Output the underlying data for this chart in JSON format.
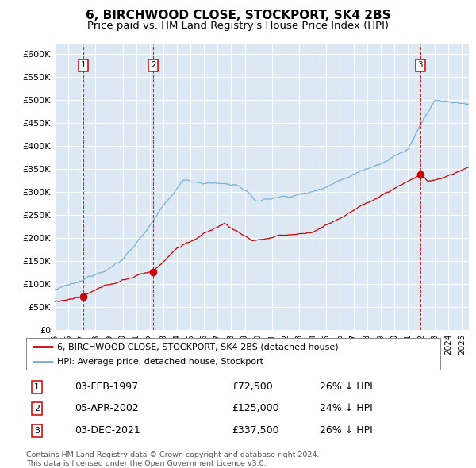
{
  "title": "6, BIRCHWOOD CLOSE, STOCKPORT, SK4 2BS",
  "subtitle": "Price paid vs. HM Land Registry's House Price Index (HPI)",
  "ylim": [
    0,
    620000
  ],
  "yticks": [
    0,
    50000,
    100000,
    150000,
    200000,
    250000,
    300000,
    350000,
    400000,
    450000,
    500000,
    550000,
    600000
  ],
  "xlim_start": 1995.0,
  "xlim_end": 2025.5,
  "background_color": "#ffffff",
  "plot_bg_color": "#dce9f5",
  "grid_color": "#ffffff",
  "sale_points": [
    {
      "year": 1997.085,
      "price": 72500,
      "label": "1"
    },
    {
      "year": 2002.26,
      "price": 125000,
      "label": "2"
    },
    {
      "year": 2021.92,
      "price": 337500,
      "label": "3"
    }
  ],
  "sale_line_color": "#cc0000",
  "hpi_line_color": "#7aafd4",
  "sale_marker_color": "#cc0000",
  "vline_color": "#cc0000",
  "label_box_color": "#cc0000",
  "legend_items": [
    "6, BIRCHWOOD CLOSE, STOCKPORT, SK4 2BS (detached house)",
    "HPI: Average price, detached house, Stockport"
  ],
  "table_data": [
    {
      "num": "1",
      "date": "03-FEB-1997",
      "price": "£72,500",
      "hpi": "26% ↓ HPI"
    },
    {
      "num": "2",
      "date": "05-APR-2002",
      "price": "£125,000",
      "hpi": "24% ↓ HPI"
    },
    {
      "num": "3",
      "date": "03-DEC-2021",
      "price": "£337,500",
      "hpi": "26% ↓ HPI"
    }
  ],
  "footer": "Contains HM Land Registry data © Crown copyright and database right 2024.\nThis data is licensed under the Open Government Licence v3.0.",
  "title_fontsize": 11,
  "subtitle_fontsize": 9.5,
  "tick_fontsize": 8,
  "label_fontsize": 9
}
